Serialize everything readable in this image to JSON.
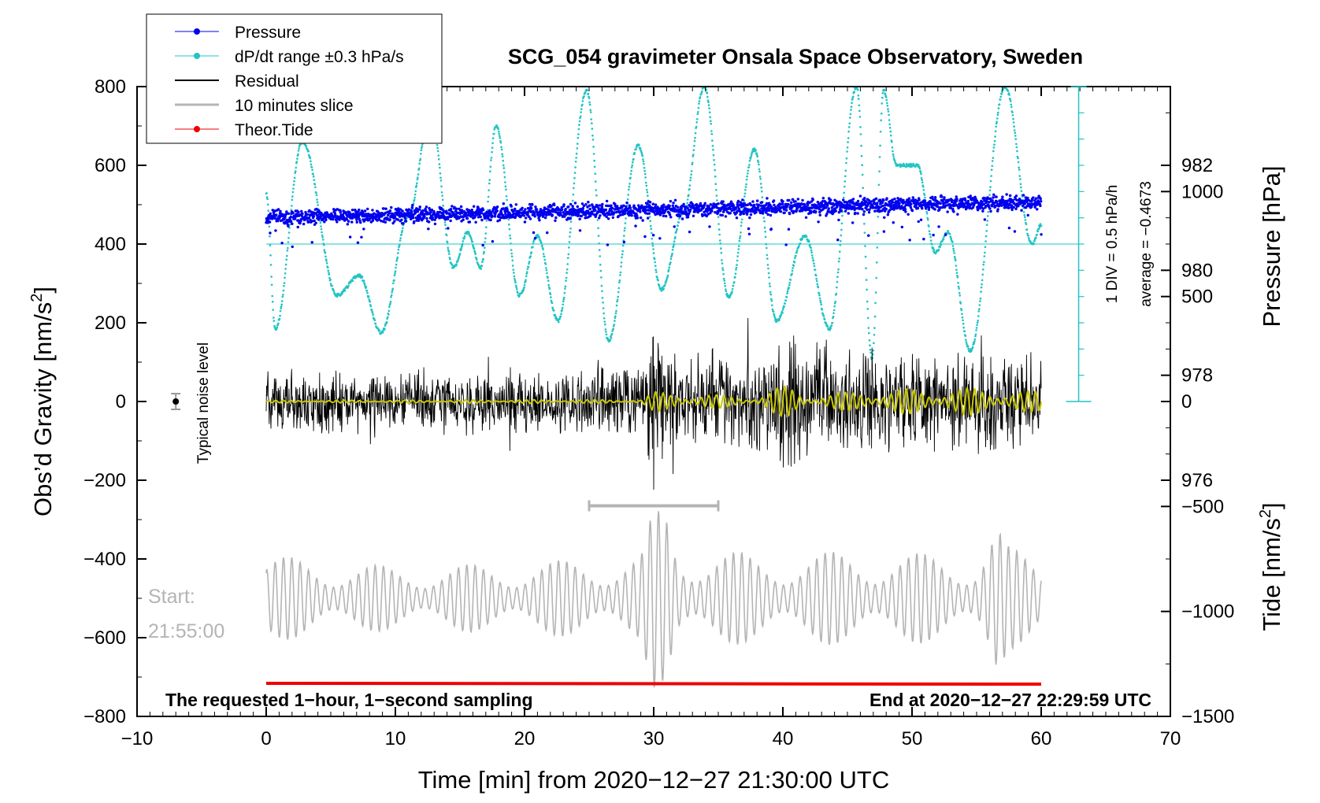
{
  "chart_data": {
    "type": "line",
    "title": "SCG_054 gravimeter Onsala Space Observatory, Sweden",
    "xlabel": "Time [min] from 2020−12−27 21:30:00 UTC",
    "ylabel_left": "Obs’d Gravity [nm/s",
    "ylabel_right_top": "Pressure [hPa]",
    "ylabel_right_bottom": "Tide [nm/s",
    "superscript": "2",
    "bracket_close": "]",
    "xlim": [
      -10,
      70
    ],
    "ylim_gravity": [
      -800,
      800
    ],
    "ylim_pressure": [
      971.5,
      983.5
    ],
    "ylim_tide": [
      -1500,
      1500
    ],
    "x_ticks": [
      -10,
      0,
      10,
      20,
      30,
      40,
      50,
      60,
      70
    ],
    "x_tick_labels": [
      "−10",
      "0",
      "10",
      "20",
      "30",
      "40",
      "50",
      "60",
      "70"
    ],
    "gravity_ticks": [
      800,
      600,
      400,
      200,
      0,
      -200,
      -400,
      -600,
      -800
    ],
    "gravity_tick_labels": [
      "800",
      "600",
      "400",
      "200",
      "0",
      "−200",
      "−400",
      "−600",
      "−800"
    ],
    "pressure_ticks": [
      982,
      980,
      978,
      976
    ],
    "pressure_tick_labels": [
      "982",
      "980",
      "978",
      "976"
    ],
    "tide_ticks": [
      1000,
      500,
      0,
      -500,
      -1000,
      -1500
    ],
    "tide_tick_labels": [
      "1000",
      "500",
      "0",
      "−500",
      "−1000",
      "−1500"
    ],
    "legend": [
      {
        "label": "Pressure",
        "color": "#0000ee",
        "marker": "dot"
      },
      {
        "label": "dP/dt range ±0.3 hPa/s",
        "color": "#22c4c4",
        "marker": "dot"
      },
      {
        "label": "Residual",
        "color": "#000000",
        "marker": "line"
      },
      {
        "label": "10 minutes slice",
        "color": "#b4b4b4",
        "marker": "line"
      },
      {
        "label": "Theor.Tide",
        "color": "#ee0000",
        "marker": "dot"
      }
    ],
    "series": {
      "pressure": {
        "name": "Pressure",
        "start_hpa": 981.0,
        "end_hpa": 981.3,
        "scatter_hpa": 0.25,
        "color": "#0000ee"
      },
      "dpdt": {
        "name": "dP/dt range ±0.3 hPa/s",
        "color": "#22c4c4",
        "midline_nms2": 400,
        "peaks": [
          [
            0,
            530
          ],
          [
            0.7,
            185
          ],
          [
            2.8,
            660
          ],
          [
            5.5,
            270
          ],
          [
            7.2,
            320
          ],
          [
            8.9,
            175
          ],
          [
            11.0,
            470
          ],
          [
            12.7,
            730
          ],
          [
            14.5,
            340
          ],
          [
            15.6,
            430
          ],
          [
            16.6,
            340
          ],
          [
            17.8,
            700
          ],
          [
            19.6,
            270
          ],
          [
            21.0,
            420
          ],
          [
            22.6,
            205
          ],
          [
            24.8,
            790
          ],
          [
            26.5,
            155
          ],
          [
            28.8,
            650
          ],
          [
            30.6,
            285
          ],
          [
            32.3,
            480
          ],
          [
            33.9,
            800
          ],
          [
            35.8,
            265
          ],
          [
            37.8,
            640
          ],
          [
            39.5,
            205
          ],
          [
            41.7,
            420
          ],
          [
            43.6,
            185
          ],
          [
            45.7,
            800
          ],
          [
            46.9,
            110
          ],
          [
            47.8,
            790
          ],
          [
            48.8,
            600
          ],
          [
            50.4,
            600
          ],
          [
            51.8,
            380
          ],
          [
            52.8,
            430
          ],
          [
            54.5,
            130
          ],
          [
            57.2,
            800
          ],
          [
            59.3,
            400
          ],
          [
            60,
            450
          ]
        ]
      },
      "residual": {
        "name": "Residual",
        "color": "#000000",
        "amplitude_envelope": [
          [
            0,
            90
          ],
          [
            10,
            95
          ],
          [
            20,
            90
          ],
          [
            29,
            95
          ],
          [
            30,
            260
          ],
          [
            31,
            130
          ],
          [
            39,
            150
          ],
          [
            40,
            220
          ],
          [
            45,
            150
          ],
          [
            57,
            140
          ],
          [
            60,
            130
          ]
        ]
      },
      "residual_filtered": {
        "color": "#c8c800",
        "amplitude_envelope": [
          [
            0,
            3
          ],
          [
            29,
            5
          ],
          [
            30,
            25
          ],
          [
            38,
            12
          ],
          [
            39.5,
            35
          ],
          [
            40.5,
            40
          ],
          [
            42,
            15
          ],
          [
            47,
            30
          ],
          [
            55,
            35
          ],
          [
            60,
            25
          ]
        ]
      },
      "slice": {
        "name": "10 minutes slice",
        "color": "#b4b4b4",
        "offset_nms2": -500,
        "start_min": 25,
        "end_min": 35,
        "center_nms2": -265
      },
      "tide": {
        "name": "Theor.Tide",
        "color": "#ee0000",
        "start_nms2": -716,
        "end_nms2": -718
      }
    },
    "noise_level": {
      "label": "Typical noise level",
      "x_min": -7,
      "value_nms2": 0,
      "error_nms2": 20
    },
    "pressure_scale": {
      "label": "1 DIV = 0.5 hPa/h",
      "average_label": "average = −0.4673",
      "x_min": 62.9
    },
    "start_label": "Start:",
    "start_time": "21:55:00",
    "note_left": "The requested 1−hour, 1−second sampling",
    "note_right": "End at 2020−12−27 22:29:59 UTC",
    "legend_placement": "top-left, outside plot"
  }
}
